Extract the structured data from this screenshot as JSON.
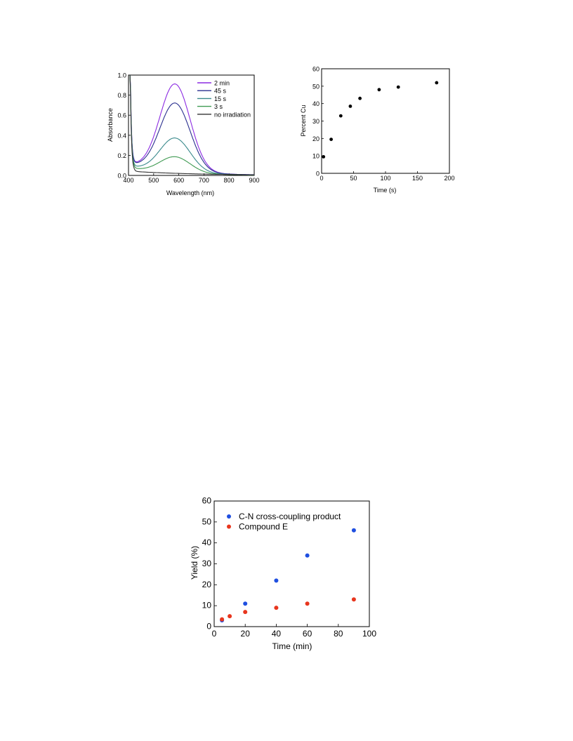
{
  "chart_data": [
    {
      "type": "line",
      "xlabel": "Wavelength (nm)",
      "ylabel": "Absorbance",
      "xlim": [
        400,
        900
      ],
      "ylim": [
        0.0,
        1.0
      ],
      "xticks": [
        400,
        500,
        600,
        700,
        800,
        900
      ],
      "yticks": [
        "0.0",
        "0.2",
        "0.4",
        "0.6",
        "0.8",
        "1.0"
      ],
      "legend_position": "top-right",
      "series": [
        {
          "name": "2 min",
          "color": "#8b2be2",
          "peak": 0.87,
          "base": 0.19
        },
        {
          "name": "45 s",
          "color": "#2a2f8f",
          "peak": 0.68,
          "base": 0.19
        },
        {
          "name": "15 s",
          "color": "#3a8a8c",
          "peak": 0.34,
          "base": 0.15
        },
        {
          "name": "3 s",
          "color": "#3f9a52",
          "peak": 0.16,
          "base": 0.12
        },
        {
          "name": "no irradiation",
          "color": "#333333",
          "peak": 0.015,
          "base": 0.03
        }
      ]
    },
    {
      "type": "scatter",
      "xlabel": "Time (s)",
      "ylabel": "Percent Cu",
      "xlim": [
        0,
        200
      ],
      "ylim": [
        0,
        60
      ],
      "xticks": [
        0,
        50,
        100,
        150,
        200
      ],
      "yticks": [
        0,
        10,
        20,
        30,
        40,
        50,
        60
      ],
      "series": [
        {
          "color": "#000000",
          "x": [
            3,
            15,
            30,
            45,
            60,
            90,
            120,
            180
          ],
          "y": [
            9.5,
            19.5,
            33,
            38.5,
            43,
            48,
            49.5,
            52
          ]
        }
      ]
    },
    {
      "type": "scatter",
      "xlabel": "Time (min)",
      "ylabel": "Yield (%)",
      "xlim": [
        0,
        100
      ],
      "ylim": [
        0,
        60
      ],
      "xticks": [
        0,
        20,
        40,
        60,
        80,
        100
      ],
      "yticks": [
        0,
        10,
        20,
        30,
        40,
        50,
        60
      ],
      "legend_position": "top-left",
      "series": [
        {
          "name": "C-N cross-coupling product",
          "color": "#1f4fe0",
          "x": [
            5,
            20,
            40,
            60,
            90
          ],
          "y": [
            3,
            11,
            22,
            34,
            46
          ]
        },
        {
          "name": "Compound E",
          "color": "#e8361e",
          "x": [
            5,
            10,
            20,
            40,
            60,
            90
          ],
          "y": [
            3.5,
            5,
            7,
            9,
            11,
            13
          ]
        }
      ]
    }
  ]
}
